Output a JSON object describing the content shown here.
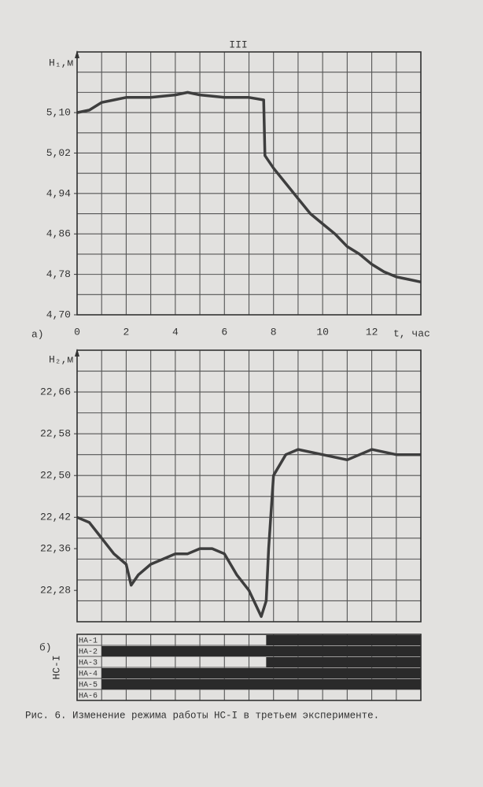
{
  "page_number": "III",
  "caption": "Рис. 6. Изменение режима работы НС-I в третьем эксперименте.",
  "chart_data": [
    {
      "type": "line",
      "panel": "а)",
      "ylabel": "H₁,м",
      "xlabel": "t, час",
      "color": "#3e3e3e",
      "x": [
        0,
        0.5,
        1,
        1.5,
        2,
        3,
        4,
        4.5,
        5,
        6,
        7,
        7.6,
        7.65,
        8,
        8.5,
        9,
        9.5,
        10,
        10.5,
        11,
        11.5,
        12,
        12.5,
        13,
        13.5,
        14
      ],
      "values": [
        5.1,
        5.105,
        5.12,
        5.125,
        5.13,
        5.13,
        5.135,
        5.14,
        5.135,
        5.13,
        5.13,
        5.125,
        5.015,
        4.99,
        4.96,
        4.93,
        4.9,
        4.88,
        4.86,
        4.835,
        4.82,
        4.8,
        4.785,
        4.775,
        4.77,
        4.765
      ],
      "xlim": [
        0,
        14
      ],
      "xticks": [
        0,
        2,
        4,
        6,
        8,
        10,
        12
      ],
      "xgrid": [
        0,
        1,
        2,
        3,
        4,
        5,
        6,
        7,
        8,
        9,
        10,
        11,
        12,
        13,
        14
      ],
      "ylim": [
        4.7,
        5.22
      ],
      "yticks": [
        {
          "value": 4.7,
          "label": "4,70"
        },
        {
          "value": 4.78,
          "label": "4,78"
        },
        {
          "value": 4.86,
          "label": "4,86"
        },
        {
          "value": 4.94,
          "label": "4,94"
        },
        {
          "value": 5.02,
          "label": "5,02"
        },
        {
          "value": 5.1,
          "label": "5,10"
        }
      ],
      "ygrid": [
        4.7,
        4.74,
        4.78,
        4.82,
        4.86,
        4.9,
        4.94,
        4.98,
        5.02,
        5.06,
        5.1,
        5.14,
        5.18,
        5.22
      ]
    },
    {
      "type": "line",
      "ylabel": "H₂,м",
      "color": "#3e3e3e",
      "x": [
        0,
        0.5,
        1,
        1.5,
        2,
        2.2,
        2.5,
        3,
        3.5,
        4,
        4.5,
        5,
        5.5,
        6,
        6.5,
        7,
        7.5,
        7.7,
        7.8,
        8,
        8.5,
        9,
        10,
        11,
        12,
        13,
        14
      ],
      "values": [
        22.42,
        22.41,
        22.38,
        22.35,
        22.33,
        22.29,
        22.31,
        22.33,
        22.34,
        22.35,
        22.35,
        22.36,
        22.36,
        22.35,
        22.31,
        22.28,
        22.23,
        22.26,
        22.36,
        22.5,
        22.54,
        22.55,
        22.54,
        22.53,
        22.55,
        22.54,
        22.54
      ],
      "xlim": [
        0,
        14
      ],
      "xgrid": [
        0,
        1,
        2,
        3,
        4,
        5,
        6,
        7,
        8,
        9,
        10,
        11,
        12,
        13,
        14
      ],
      "ylim": [
        22.22,
        22.74
      ],
      "yticks": [
        {
          "value": 22.28,
          "label": "22,28"
        },
        {
          "value": 22.36,
          "label": "22,36"
        },
        {
          "value": 22.42,
          "label": "22,42"
        },
        {
          "value": 22.5,
          "label": "22,50"
        },
        {
          "value": 22.58,
          "label": "22,58"
        },
        {
          "value": 22.66,
          "label": "22,66"
        }
      ],
      "ygrid": [
        22.22,
        22.26,
        22.3,
        22.34,
        22.38,
        22.42,
        22.46,
        22.5,
        22.54,
        22.58,
        22.62,
        22.66,
        22.7,
        22.74
      ]
    },
    {
      "type": "gantt",
      "panel": "б)",
      "ylabel": "НС-I",
      "color": "#2a2a2a",
      "xlim": [
        0,
        14
      ],
      "xgrid": [
        0,
        1,
        2,
        3,
        4,
        5,
        6,
        7,
        8,
        9,
        10,
        11,
        12,
        13,
        14
      ],
      "series": [
        {
          "name": "НА-1",
          "segments": [
            [
              7.7,
              14
            ]
          ]
        },
        {
          "name": "НА-2",
          "segments": [
            [
              1,
              14
            ]
          ]
        },
        {
          "name": "НА-3",
          "segments": [
            [
              7.7,
              14
            ]
          ]
        },
        {
          "name": "НА-4",
          "segments": [
            [
              1,
              14
            ]
          ]
        },
        {
          "name": "НА-5",
          "segments": [
            [
              1,
              14
            ]
          ]
        },
        {
          "name": "НА-6",
          "segments": []
        }
      ]
    }
  ]
}
